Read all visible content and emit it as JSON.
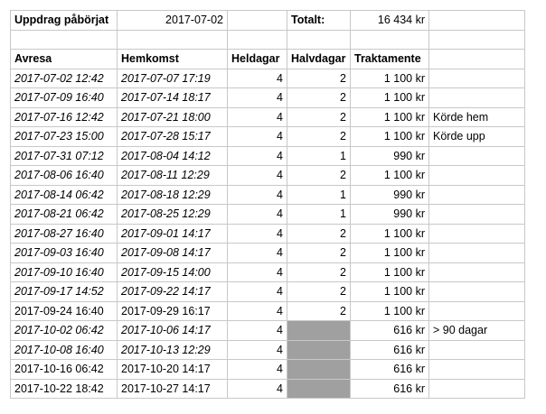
{
  "info": {
    "started_label": "Uppdrag påbörjat",
    "started_date": "2017-07-02",
    "total_label": "Totalt:",
    "total_value": "16 434 kr"
  },
  "columns": [
    "Avresa",
    "Hemkomst",
    "Heldagar",
    "Halvdagar",
    "Traktamente"
  ],
  "colors": {
    "gridline": "#c8c8c8",
    "shaded_cell": "#a0a0a0"
  },
  "rows": [
    {
      "avresa": "2017-07-02 12:42",
      "hemkomst": "2017-07-07 17:19",
      "heldagar": "4",
      "halvdagar": "2",
      "traktamente": "1 100 kr",
      "note": "",
      "italic": true,
      "shaded": false
    },
    {
      "avresa": "2017-07-09 16:40",
      "hemkomst": "2017-07-14 18:17",
      "heldagar": "4",
      "halvdagar": "2",
      "traktamente": "1 100 kr",
      "note": "",
      "italic": true,
      "shaded": false
    },
    {
      "avresa": "2017-07-16 12:42",
      "hemkomst": "2017-07-21 18:00",
      "heldagar": "4",
      "halvdagar": "2",
      "traktamente": "1 100 kr",
      "note": "Körde hem",
      "italic": true,
      "shaded": false
    },
    {
      "avresa": "2017-07-23 15:00",
      "hemkomst": "2017-07-28 15:17",
      "heldagar": "4",
      "halvdagar": "2",
      "traktamente": "1 100 kr",
      "note": "Körde upp",
      "italic": true,
      "shaded": false
    },
    {
      "avresa": "2017-07-31 07:12",
      "hemkomst": "2017-08-04 14:12",
      "heldagar": "4",
      "halvdagar": "1",
      "traktamente": "990 kr",
      "note": "",
      "italic": true,
      "shaded": false
    },
    {
      "avresa": "2017-08-06 16:40",
      "hemkomst": "2017-08-11 12:29",
      "heldagar": "4",
      "halvdagar": "2",
      "traktamente": "1 100 kr",
      "note": "",
      "italic": true,
      "shaded": false
    },
    {
      "avresa": "2017-08-14 06:42",
      "hemkomst": "2017-08-18 12:29",
      "heldagar": "4",
      "halvdagar": "1",
      "traktamente": "990 kr",
      "note": "",
      "italic": true,
      "shaded": false
    },
    {
      "avresa": "2017-08-21 06:42",
      "hemkomst": "2017-08-25 12:29",
      "heldagar": "4",
      "halvdagar": "1",
      "traktamente": "990 kr",
      "note": "",
      "italic": true,
      "shaded": false
    },
    {
      "avresa": "2017-08-27 16:40",
      "hemkomst": "2017-09-01 14:17",
      "heldagar": "4",
      "halvdagar": "2",
      "traktamente": "1 100 kr",
      "note": "",
      "italic": true,
      "shaded": false
    },
    {
      "avresa": "2017-09-03 16:40",
      "hemkomst": "2017-09-08 14:17",
      "heldagar": "4",
      "halvdagar": "2",
      "traktamente": "1 100 kr",
      "note": "",
      "italic": true,
      "shaded": false
    },
    {
      "avresa": "2017-09-10 16:40",
      "hemkomst": "2017-09-15 14:00",
      "heldagar": "4",
      "halvdagar": "2",
      "traktamente": "1 100 kr",
      "note": "",
      "italic": true,
      "shaded": false
    },
    {
      "avresa": "2017-09-17 14:52",
      "hemkomst": "2017-09-22 14:17",
      "heldagar": "4",
      "halvdagar": "2",
      "traktamente": "1 100 kr",
      "note": "",
      "italic": true,
      "shaded": false
    },
    {
      "avresa": "2017-09-24 16:40",
      "hemkomst": "2017-09-29 16:17",
      "heldagar": "4",
      "halvdagar": "2",
      "traktamente": "1 100 kr",
      "note": "",
      "italic": false,
      "shaded": false
    },
    {
      "avresa": "2017-10-02 06:42",
      "hemkomst": "2017-10-06 14:17",
      "heldagar": "4",
      "halvdagar": "",
      "traktamente": "616 kr",
      "note": "> 90 dagar",
      "italic": true,
      "shaded": true
    },
    {
      "avresa": "2017-10-08 16:40",
      "hemkomst": "2017-10-13 12:29",
      "heldagar": "4",
      "halvdagar": "",
      "traktamente": "616 kr",
      "note": "",
      "italic": true,
      "shaded": true
    },
    {
      "avresa": "2017-10-16 06:42",
      "hemkomst": "2017-10-20 14:17",
      "heldagar": "4",
      "halvdagar": "",
      "traktamente": "616 kr",
      "note": "",
      "italic": false,
      "shaded": true
    },
    {
      "avresa": "2017-10-22 18:42",
      "hemkomst": "2017-10-27 14:17",
      "heldagar": "4",
      "halvdagar": "",
      "traktamente": "616 kr",
      "note": "",
      "italic": false,
      "shaded": true
    }
  ]
}
